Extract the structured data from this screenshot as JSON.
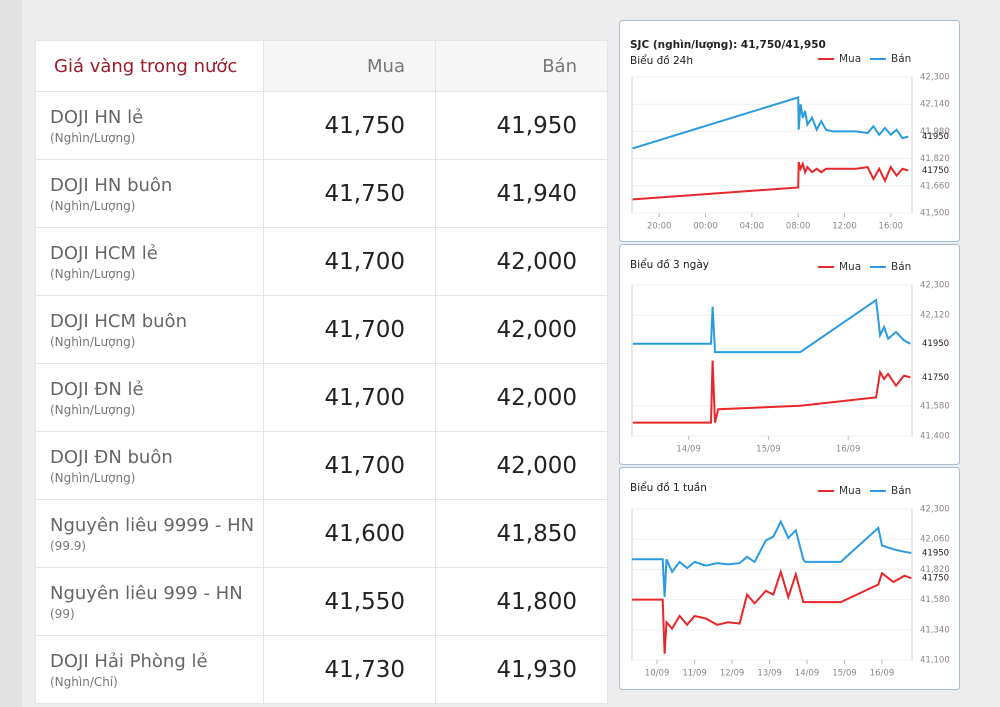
{
  "table": {
    "header": [
      "Giá vàng trong nước",
      "Mua",
      "Bán"
    ],
    "rows": [
      {
        "name": "DOJI HN lẻ",
        "unit": "(Nghìn/Lượng)",
        "buy": "41,750",
        "sell": "41,950"
      },
      {
        "name": "DOJI HN buôn",
        "unit": "(Nghìn/Lượng)",
        "buy": "41,750",
        "sell": "41,940"
      },
      {
        "name": "DOJI HCM lẻ",
        "unit": "(Nghìn/Lượng)",
        "buy": "41,700",
        "sell": "42,000"
      },
      {
        "name": "DOJI HCM buôn",
        "unit": "(Nghìn/Lượng)",
        "buy": "41,700",
        "sell": "42,000"
      },
      {
        "name": "DOJI ĐN lẻ",
        "unit": "(Nghìn/Lượng)",
        "buy": "41,700",
        "sell": "42,000"
      },
      {
        "name": "DOJI ĐN buôn",
        "unit": "(Nghìn/Lượng)",
        "buy": "41,700",
        "sell": "42,000"
      },
      {
        "name": "Nguyên liêu 9999 - HN",
        "unit": "(99.9)",
        "buy": "41,600",
        "sell": "41,850"
      },
      {
        "name": "Nguyên liêu 999 - HN",
        "unit": "(99)",
        "buy": "41,550",
        "sell": "41,800"
      },
      {
        "name": "DOJI Hải Phòng lẻ",
        "unit": "(Nghìn/Chỉ)",
        "buy": "41,730",
        "sell": "41,930"
      }
    ]
  },
  "chart_data": [
    {
      "type": "line",
      "title": "SJC (nghìn/lượng): 41,750/41,950",
      "subtitle": "Biểu đồ 24h",
      "grid": true,
      "x": [
        -6.3,
        8.0,
        8.05,
        8.2,
        8.4,
        8.6,
        8.8,
        9.2,
        9.6,
        10.0,
        10.4,
        11.0,
        12.0,
        13.0,
        14.0,
        14.5,
        15.0,
        15.5,
        16.0,
        16.5,
        17.0,
        17.5
      ],
      "series": [
        {
          "name": "Mua",
          "color": "#e8272a",
          "values": [
            41580,
            41650,
            41800,
            41760,
            41790,
            41740,
            41770,
            41740,
            41760,
            41740,
            41760,
            41760,
            41760,
            41760,
            41770,
            41700,
            41760,
            41690,
            41770,
            41720,
            41760,
            41750
          ]
        },
        {
          "name": "Bán",
          "color": "#2b9be0",
          "values": [
            41880,
            42180,
            41990,
            42140,
            42060,
            42100,
            42020,
            42060,
            41990,
            42040,
            41990,
            41980,
            41980,
            41980,
            41970,
            42010,
            41960,
            42000,
            41960,
            41990,
            41940,
            41950
          ]
        }
      ],
      "xlim": [
        -6.35,
        17.83
      ],
      "xticks": [
        {
          "value": -4,
          "label": "20:00"
        },
        {
          "value": 0,
          "label": "00:00"
        },
        {
          "value": 4,
          "label": "04:00"
        },
        {
          "value": 8,
          "label": "08:00"
        },
        {
          "value": 12,
          "label": "12:00"
        },
        {
          "value": 16,
          "label": "16:00"
        }
      ],
      "ylim": [
        41500,
        42300
      ],
      "yticks": [
        {
          "value": 42300,
          "label": "42,300"
        },
        {
          "value": 42140,
          "label": "42,140"
        },
        {
          "value": 41980,
          "label": "41,980"
        },
        {
          "value": 41820,
          "label": "41,820"
        },
        {
          "value": 41660,
          "label": "41,660"
        },
        {
          "value": 41500,
          "label": "41,500"
        }
      ],
      "annotations": [
        41950,
        41750
      ]
    },
    {
      "type": "line",
      "subtitle": "Biểu đồ 3 ngày",
      "grid": true,
      "x": [
        13.3,
        14.28,
        14.3,
        14.33,
        14.37,
        15.4,
        16.35,
        16.4,
        16.45,
        16.5,
        16.6,
        16.7,
        16.78
      ],
      "series": [
        {
          "name": "Mua",
          "color": "#e8272a",
          "values": [
            41480,
            41480,
            41850,
            41480,
            41560,
            41580,
            41630,
            41780,
            41740,
            41770,
            41700,
            41760,
            41750
          ]
        },
        {
          "name": "Bán",
          "color": "#2b9be0",
          "values": [
            41950,
            41950,
            42170,
            41900,
            41900,
            41900,
            42210,
            42000,
            42050,
            41980,
            42020,
            41970,
            41950
          ]
        }
      ],
      "xlim": [
        13.29,
        16.8
      ],
      "xticks": [
        {
          "value": 14,
          "label": "14/09"
        },
        {
          "value": 15,
          "label": "15/09"
        },
        {
          "value": 16,
          "label": "16/09"
        }
      ],
      "ylim": [
        41400,
        42300
      ],
      "yticks": [
        {
          "value": 42300,
          "label": "42,300"
        },
        {
          "value": 42120,
          "label": "42,120"
        },
        {
          "value": 41580,
          "label": "41,580"
        },
        {
          "value": 41400,
          "label": "41,400"
        }
      ],
      "annotations": [
        41950,
        41750
      ]
    },
    {
      "type": "line",
      "subtitle": "Biểu đồ 1 tuần",
      "grid": true,
      "x": [
        9.33,
        10.15,
        10.2,
        10.25,
        10.4,
        10.6,
        10.8,
        11.0,
        11.3,
        11.6,
        11.9,
        12.2,
        12.4,
        12.6,
        12.9,
        13.1,
        13.3,
        13.5,
        13.7,
        13.9,
        13.95,
        14.9,
        15.9,
        16.0,
        16.3,
        16.6,
        16.78
      ],
      "series": [
        {
          "name": "Mua",
          "color": "#e8272a",
          "values": [
            41580,
            41580,
            41150,
            41400,
            41350,
            41450,
            41380,
            41450,
            41430,
            41380,
            41400,
            41390,
            41620,
            41550,
            41650,
            41620,
            41800,
            41600,
            41780,
            41560,
            41560,
            41560,
            41700,
            41790,
            41720,
            41770,
            41750
          ]
        },
        {
          "name": "Bán",
          "color": "#2b9be0",
          "values": [
            41900,
            41900,
            41600,
            41900,
            41800,
            41880,
            41830,
            41880,
            41850,
            41870,
            41860,
            41870,
            41920,
            41880,
            42050,
            42080,
            42200,
            42070,
            42130,
            41900,
            41880,
            41880,
            42150,
            42010,
            41980,
            41960,
            41950
          ]
        }
      ],
      "xlim": [
        9.33,
        16.8
      ],
      "xticks": [
        {
          "value": 10,
          "label": "10/09"
        },
        {
          "value": 11,
          "label": "11/09"
        },
        {
          "value": 12,
          "label": "12/09"
        },
        {
          "value": 13,
          "label": "13/09"
        },
        {
          "value": 14,
          "label": "14/09"
        },
        {
          "value": 15,
          "label": "15/09"
        },
        {
          "value": 16,
          "label": "16/09"
        }
      ],
      "ylim": [
        41100,
        42300
      ],
      "yticks": [
        {
          "value": 42300,
          "label": "42,300"
        },
        {
          "value": 42060,
          "label": "42,060"
        },
        {
          "value": 41820,
          "label": "41,820"
        },
        {
          "value": 41580,
          "label": "41,580"
        },
        {
          "value": 41340,
          "label": "41,340"
        },
        {
          "value": 41100,
          "label": "41,100"
        }
      ],
      "annotations": [
        41950,
        41750
      ]
    }
  ]
}
